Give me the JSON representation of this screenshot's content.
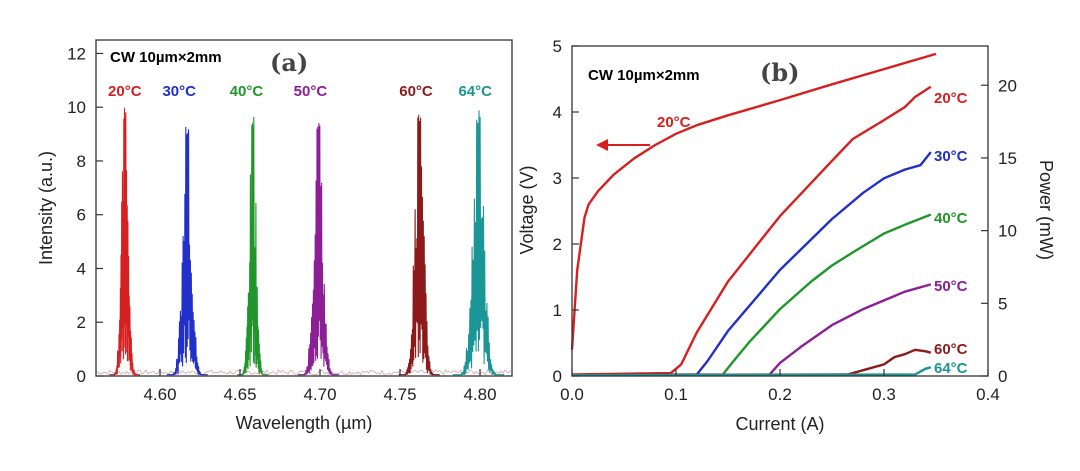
{
  "chart_data": [
    {
      "type": "line",
      "panel": "(a)",
      "annotation": "CW   10µm×2mm",
      "xlabel": "Wavelength (µm)",
      "ylabel": "Intensity (a.u.)",
      "xlim": [
        4.56,
        4.82
      ],
      "ylim": [
        0,
        12.5
      ],
      "xticks": [
        "4.60",
        "4.65",
        "4.70",
        "4.75",
        "4.80"
      ],
      "xtick_values": [
        4.6,
        4.65,
        4.7,
        4.75,
        4.8
      ],
      "yticks": [
        "0",
        "2",
        "4",
        "6",
        "8",
        "10",
        "12"
      ],
      "ytick_values": [
        0,
        2,
        4,
        6,
        8,
        10,
        12
      ],
      "grid": false,
      "series": [
        {
          "label": "20°C",
          "color": "#d62020",
          "center": 4.578,
          "peak": 10.0,
          "width": 0.003,
          "label_x": 4.578
        },
        {
          "label": "30°C",
          "color": "#2030c8",
          "center": 4.617,
          "peak": 9.4,
          "width": 0.004,
          "label_x": 4.612
        },
        {
          "label": "40°C",
          "color": "#20962a",
          "center": 4.658,
          "peak": 9.7,
          "width": 0.003,
          "label_x": 4.654
        },
        {
          "label": "50°C",
          "color": "#8c1e96",
          "center": 4.699,
          "peak": 9.6,
          "width": 0.004,
          "label_x": 4.694
        },
        {
          "label": "60°C",
          "color": "#8c1a1a",
          "center": 4.762,
          "peak": 9.9,
          "width": 0.004,
          "label_x": 4.76
        },
        {
          "label": "64°C",
          "color": "#1a9696",
          "center": 4.799,
          "peak": 9.9,
          "width": 0.005,
          "label_x": 4.797
        }
      ]
    },
    {
      "type": "line",
      "panel": "(b)",
      "annotation": "CW   10µm×2mm",
      "xlabel": "Current (A)",
      "ylabel": "Voltage (V)",
      "ylabel_right": "Power (mW)",
      "xlim": [
        0,
        0.4
      ],
      "ylim": [
        0,
        5
      ],
      "ylim_right": [
        0,
        22.7
      ],
      "xticks": [
        "0.0",
        "0.1",
        "0.2",
        "0.3",
        "0.4"
      ],
      "xtick_values": [
        0,
        0.1,
        0.2,
        0.3,
        0.4
      ],
      "yticks": [
        "0",
        "1",
        "2",
        "3",
        "4",
        "5"
      ],
      "ytick_values": [
        0,
        1,
        2,
        3,
        4,
        5
      ],
      "yticks_right": [
        "0",
        "5",
        "10",
        "15",
        "20"
      ],
      "ytick_values_right": [
        0,
        5,
        10,
        15,
        20
      ],
      "grid": false,
      "voltage_series": {
        "label": "20°C",
        "color": "#d62020",
        "x": [
          0,
          0.005,
          0.012,
          0.016,
          0.025,
          0.04,
          0.06,
          0.08,
          0.1,
          0.12,
          0.15,
          0.2,
          0.25,
          0.3,
          0.35
        ],
        "y": [
          0.4,
          1.6,
          2.4,
          2.6,
          2.8,
          3.05,
          3.3,
          3.5,
          3.67,
          3.8,
          3.95,
          4.18,
          4.42,
          4.65,
          4.88
        ]
      },
      "power_series": [
        {
          "label": "20°C",
          "color": "#d62020",
          "x": [
            0,
            0.095,
            0.105,
            0.12,
            0.15,
            0.2,
            0.25,
            0.27,
            0.3,
            0.32,
            0.33,
            0.345
          ],
          "y": [
            0.1,
            0.2,
            0.8,
            3.0,
            6.5,
            11.0,
            14.8,
            16.3,
            17.6,
            18.5,
            19.2,
            19.9
          ]
        },
        {
          "label": "30°C",
          "color": "#2030c8",
          "x": [
            0,
            0.12,
            0.13,
            0.15,
            0.2,
            0.25,
            0.28,
            0.3,
            0.32,
            0.335,
            0.345
          ],
          "y": [
            0.05,
            0.1,
            1.0,
            3.1,
            7.3,
            10.8,
            12.6,
            13.6,
            14.2,
            14.5,
            15.4
          ]
        },
        {
          "label": "40°C",
          "color": "#20962a",
          "x": [
            0,
            0.145,
            0.155,
            0.17,
            0.2,
            0.23,
            0.25,
            0.27,
            0.3,
            0.32,
            0.345
          ],
          "y": [
            0.05,
            0.1,
            1.0,
            2.3,
            4.6,
            6.5,
            7.6,
            8.5,
            9.8,
            10.4,
            11.1
          ]
        },
        {
          "label": "50°C",
          "color": "#8c1e96",
          "x": [
            0,
            0.19,
            0.2,
            0.22,
            0.25,
            0.28,
            0.3,
            0.32,
            0.345
          ],
          "y": [
            0.05,
            0.1,
            0.9,
            2.0,
            3.5,
            4.6,
            5.2,
            5.8,
            6.3
          ]
        },
        {
          "label": "60°C",
          "color": "#8c1a1a",
          "x": [
            0,
            0.265,
            0.28,
            0.3,
            0.31,
            0.32,
            0.33,
            0.34,
            0.345
          ],
          "y": [
            0.05,
            0.1,
            0.4,
            0.8,
            1.3,
            1.5,
            1.8,
            1.7,
            1.6
          ]
        },
        {
          "label": "64°C",
          "color": "#1a9696",
          "x": [
            0,
            0.33,
            0.335,
            0.34,
            0.345
          ],
          "y": [
            0.05,
            0.1,
            0.3,
            0.5,
            0.6
          ]
        }
      ]
    }
  ]
}
